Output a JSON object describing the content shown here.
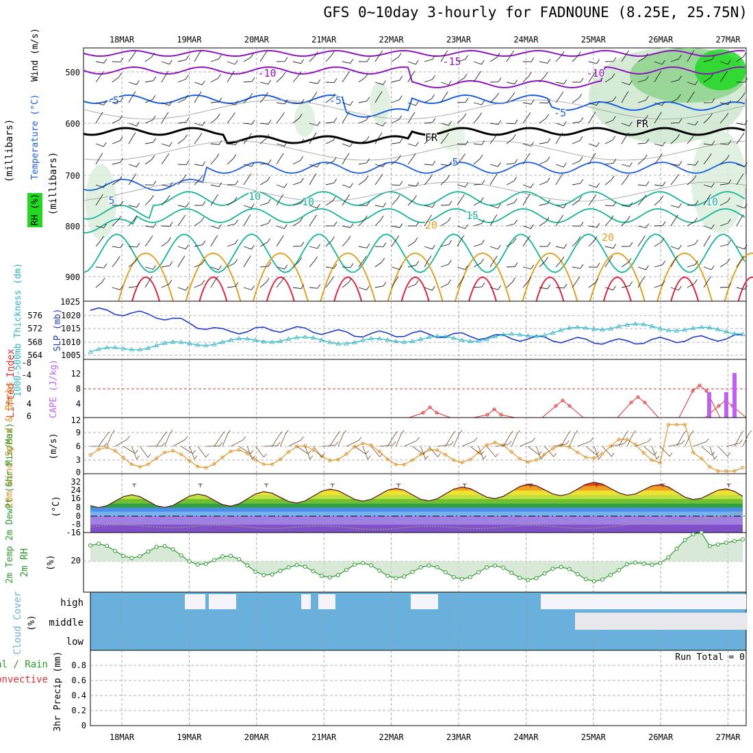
{
  "title": "GFS 0~10day 3-hourly for FADNOUNE (8.25E, 25.75N)",
  "dates": [
    "18MAR",
    "19MAR",
    "20MAR",
    "21MAR",
    "22MAR",
    "23MAR",
    "24MAR",
    "25MAR",
    "26MAR",
    "27MAR"
  ],
  "colors": {
    "wind": "#000000",
    "temp_cold": "#8f14c0",
    "temp_mid": "#1a5fe0",
    "temp_warm": "#14b49a",
    "temp_hot": "#e0a020",
    "temp_vhot": "#e02040",
    "rh": "#50c850",
    "slp": "#1e3cc8",
    "thick": "#2ab4c8",
    "lifted": "#e03030",
    "cape": "#c060f0",
    "wind10": "#e0962a",
    "cloud": "#6ab0dc",
    "rh2m": "#2a9a2a"
  },
  "upper": {
    "label_wind": "Wind (m/s)",
    "label_temp": "Temperature (°C)",
    "label_rh": "RH (%)",
    "label_mb": "(millibars)",
    "yticks": [
      "500",
      "600",
      "700",
      "800",
      "900",
      "1025"
    ],
    "contour_labels": [
      "-15",
      "-10",
      "-10",
      "-5",
      "-5",
      "-5",
      "FR",
      "FR",
      "5",
      "5",
      "10",
      "15",
      "20",
      "20",
      "10",
      "10"
    ]
  },
  "slp_panel": {
    "label_thick": "1000-500mb Thickness (dm)",
    "label_slp": "SLP (mb)",
    "thick_ticks": [
      "576",
      "572",
      "568",
      "564"
    ],
    "slp_ticks": [
      "1020",
      "1015",
      "1010",
      "1005"
    ]
  },
  "cape_panel": {
    "label_li": "Lifted Index",
    "label_cape": "CAPE (J/kg)",
    "li_ticks": [
      "-8",
      "-4",
      "0",
      "4",
      "6"
    ],
    "cape_ticks": [
      "12",
      "8",
      "4"
    ]
  },
  "wind_panel": {
    "label": "10m Wind Speed & Barbs",
    "unit": "(m/s)",
    "yticks": [
      "12",
      "9",
      "6",
      "3",
      "0"
    ]
  },
  "temp_panel": {
    "label": "2m Temp 2m DewPt (6hr Min/Max)",
    "unit": "(°C)",
    "yticks": [
      "32",
      "24",
      "16",
      "8",
      "0",
      "-8",
      "-16"
    ]
  },
  "rh_panel": {
    "label": "2m RH",
    "unit": "(%)",
    "yticks": [
      "20"
    ]
  },
  "cloud_panel": {
    "label": "Cloud Cover",
    "unit": "(%)",
    "levels": [
      "high",
      "middle",
      "low"
    ]
  },
  "precip_panel": {
    "label_total": "Total / Rain",
    "label_conv": "Convective",
    "label_axis": "3hr Precip (mm)",
    "yticks": [
      "0.8",
      "0.6",
      "0.4",
      "0.2",
      "0"
    ],
    "run_total": "Run Total = 0"
  },
  "chart_data": {
    "type": "line",
    "x": [
      "18MAR",
      "19MAR",
      "20MAR",
      "21MAR",
      "22MAR",
      "23MAR",
      "24MAR",
      "25MAR",
      "26MAR",
      "27MAR"
    ],
    "series": [
      {
        "name": "SLP (mb)",
        "values": [
          1022,
          1020,
          1014,
          1015,
          1013,
          1013,
          1012,
          1011,
          1010,
          1011
        ]
      },
      {
        "name": "1000-500mb Thickness (dm)",
        "values": [
          565,
          567,
          568,
          569,
          568,
          569,
          569,
          571,
          573,
          572
        ]
      },
      {
        "name": "10m Wind Speed",
        "values": [
          4,
          3,
          3,
          4,
          5,
          3,
          5,
          4,
          6,
          3
        ]
      },
      {
        "name": "2m Temp",
        "values": [
          14,
          14,
          15,
          18,
          20,
          20,
          22,
          25,
          26,
          22
        ]
      },
      {
        "name": "2m DewPt",
        "values": [
          -10,
          -9,
          -10,
          -10,
          -11,
          -11,
          -10,
          -10,
          -10,
          -4
        ]
      },
      {
        "name": "2m RH",
        "values": [
          28,
          27,
          20,
          12,
          14,
          12,
          12,
          11,
          10,
          32
        ]
      }
    ],
    "cape_bars": {
      "26MAR": [
        8,
        8,
        14
      ]
    },
    "precip_total": 0
  }
}
